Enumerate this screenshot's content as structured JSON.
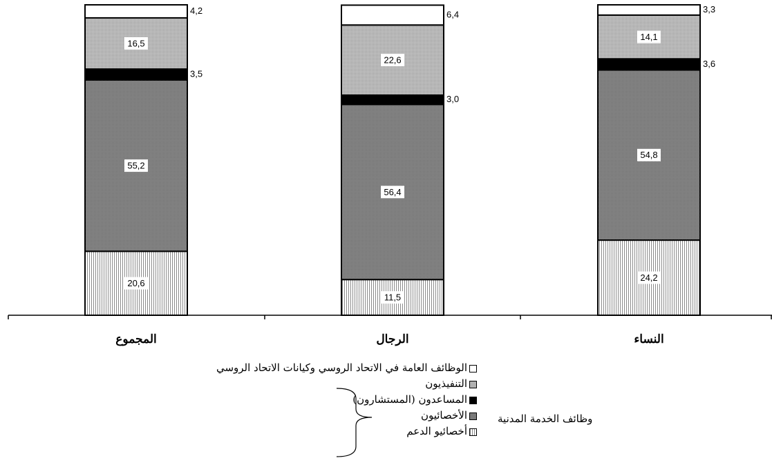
{
  "chart_data": {
    "type": "bar",
    "stacked": true,
    "categories": [
      "المجموع",
      "الرجال",
      "النساء"
    ],
    "series": [
      {
        "name": "أخصائيو الدعم",
        "values": [
          20.6,
          11.5,
          24.2
        ],
        "labels": [
          "20,6",
          "11,5",
          "24,2"
        ],
        "pattern": "vertical-lines"
      },
      {
        "name": "الأخصائيون",
        "values": [
          55.2,
          56.4,
          54.8
        ],
        "labels": [
          "55,2",
          "56,4",
          "54,8"
        ],
        "pattern": "dark-dots"
      },
      {
        "name": "المساعدون (المستشارون)",
        "values": [
          3.5,
          3.0,
          3.6
        ],
        "labels": [
          "3,5",
          "3,0",
          "3,6"
        ],
        "pattern": "solid-black"
      },
      {
        "name": "التنفيذيون",
        "values": [
          16.5,
          22.6,
          14.1
        ],
        "labels": [
          "16,5",
          "22,6",
          "14,1"
        ],
        "pattern": "light-dots"
      },
      {
        "name": "الوظائف العامة في الاتحاد الروسي وكيانات الاتحاد الروسي",
        "values": [
          4.2,
          6.4,
          3.3
        ],
        "labels": [
          "4,2",
          "6,4",
          "3,3"
        ],
        "pattern": "white"
      }
    ],
    "legend_group_label": "وظائف الخدمة المدنية",
    "ylim": [
      0,
      100
    ],
    "grid": false,
    "legend_position": "bottom"
  }
}
